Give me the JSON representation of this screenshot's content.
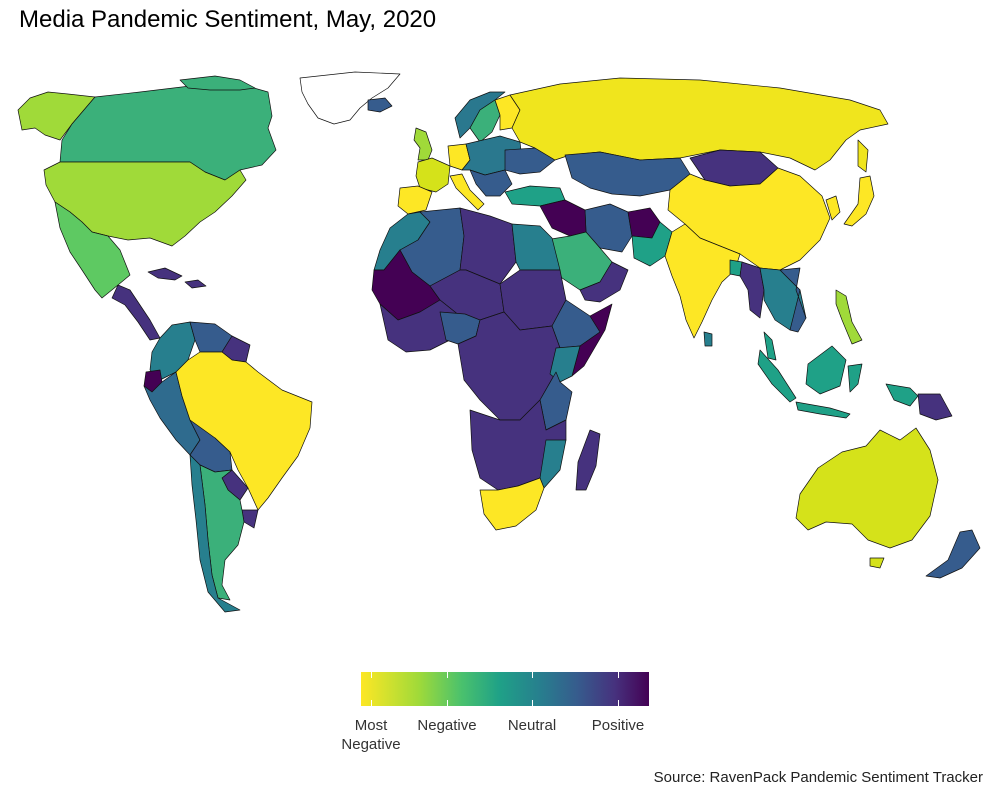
{
  "title": "Media Pandemic Sentiment, May, 2020",
  "source": "Source: RavenPack Pandemic Sentiment Tracker",
  "legend": {
    "colors": [
      "#fde725",
      "#a0da39",
      "#4ac16d",
      "#1fa187",
      "#277f8e",
      "#365c8d",
      "#46327e",
      "#440154"
    ],
    "labels": [
      "Most\nNegative",
      "Negative",
      "Neutral",
      "Positive"
    ]
  },
  "palette": {
    "most_negative": "#fde725",
    "negative": "#a0da39",
    "neutral": "#277f8e",
    "positive": "#46327e",
    "most_positive": "#440154",
    "no_data": "#ffffff",
    "border": "#111111"
  }
}
